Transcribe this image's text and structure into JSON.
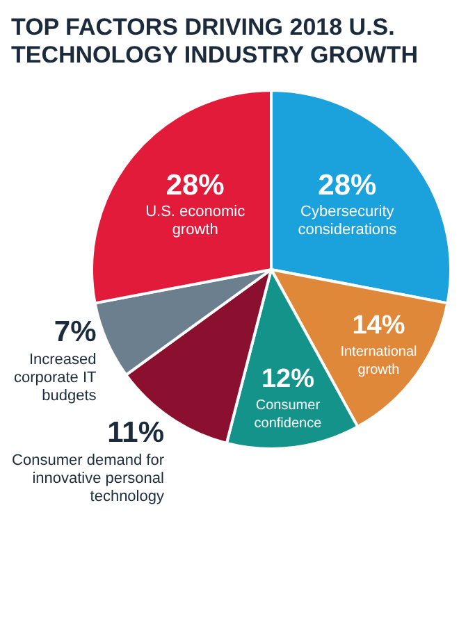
{
  "chart_data": {
    "type": "pie",
    "title": "TOP FACTORS DRIVING 2018 U.S. TECHNOLOGY INDUSTRY GROWTH",
    "categories": [
      "Cybersecurity considerations",
      "International growth",
      "Consumer confidence",
      "Consumer demand for innovative personal technology",
      "Increased corporate IT budgets",
      "U.S. economic growth"
    ],
    "values": [
      28,
      14,
      12,
      11,
      7,
      28
    ],
    "value_labels": [
      "28%",
      "14%",
      "12%",
      "11%",
      "7%",
      "28%"
    ],
    "colors": [
      "#1ba1dc",
      "#e0883a",
      "#14938a",
      "#8b0f2e",
      "#6b7f8f",
      "#e31b3b"
    ]
  }
}
